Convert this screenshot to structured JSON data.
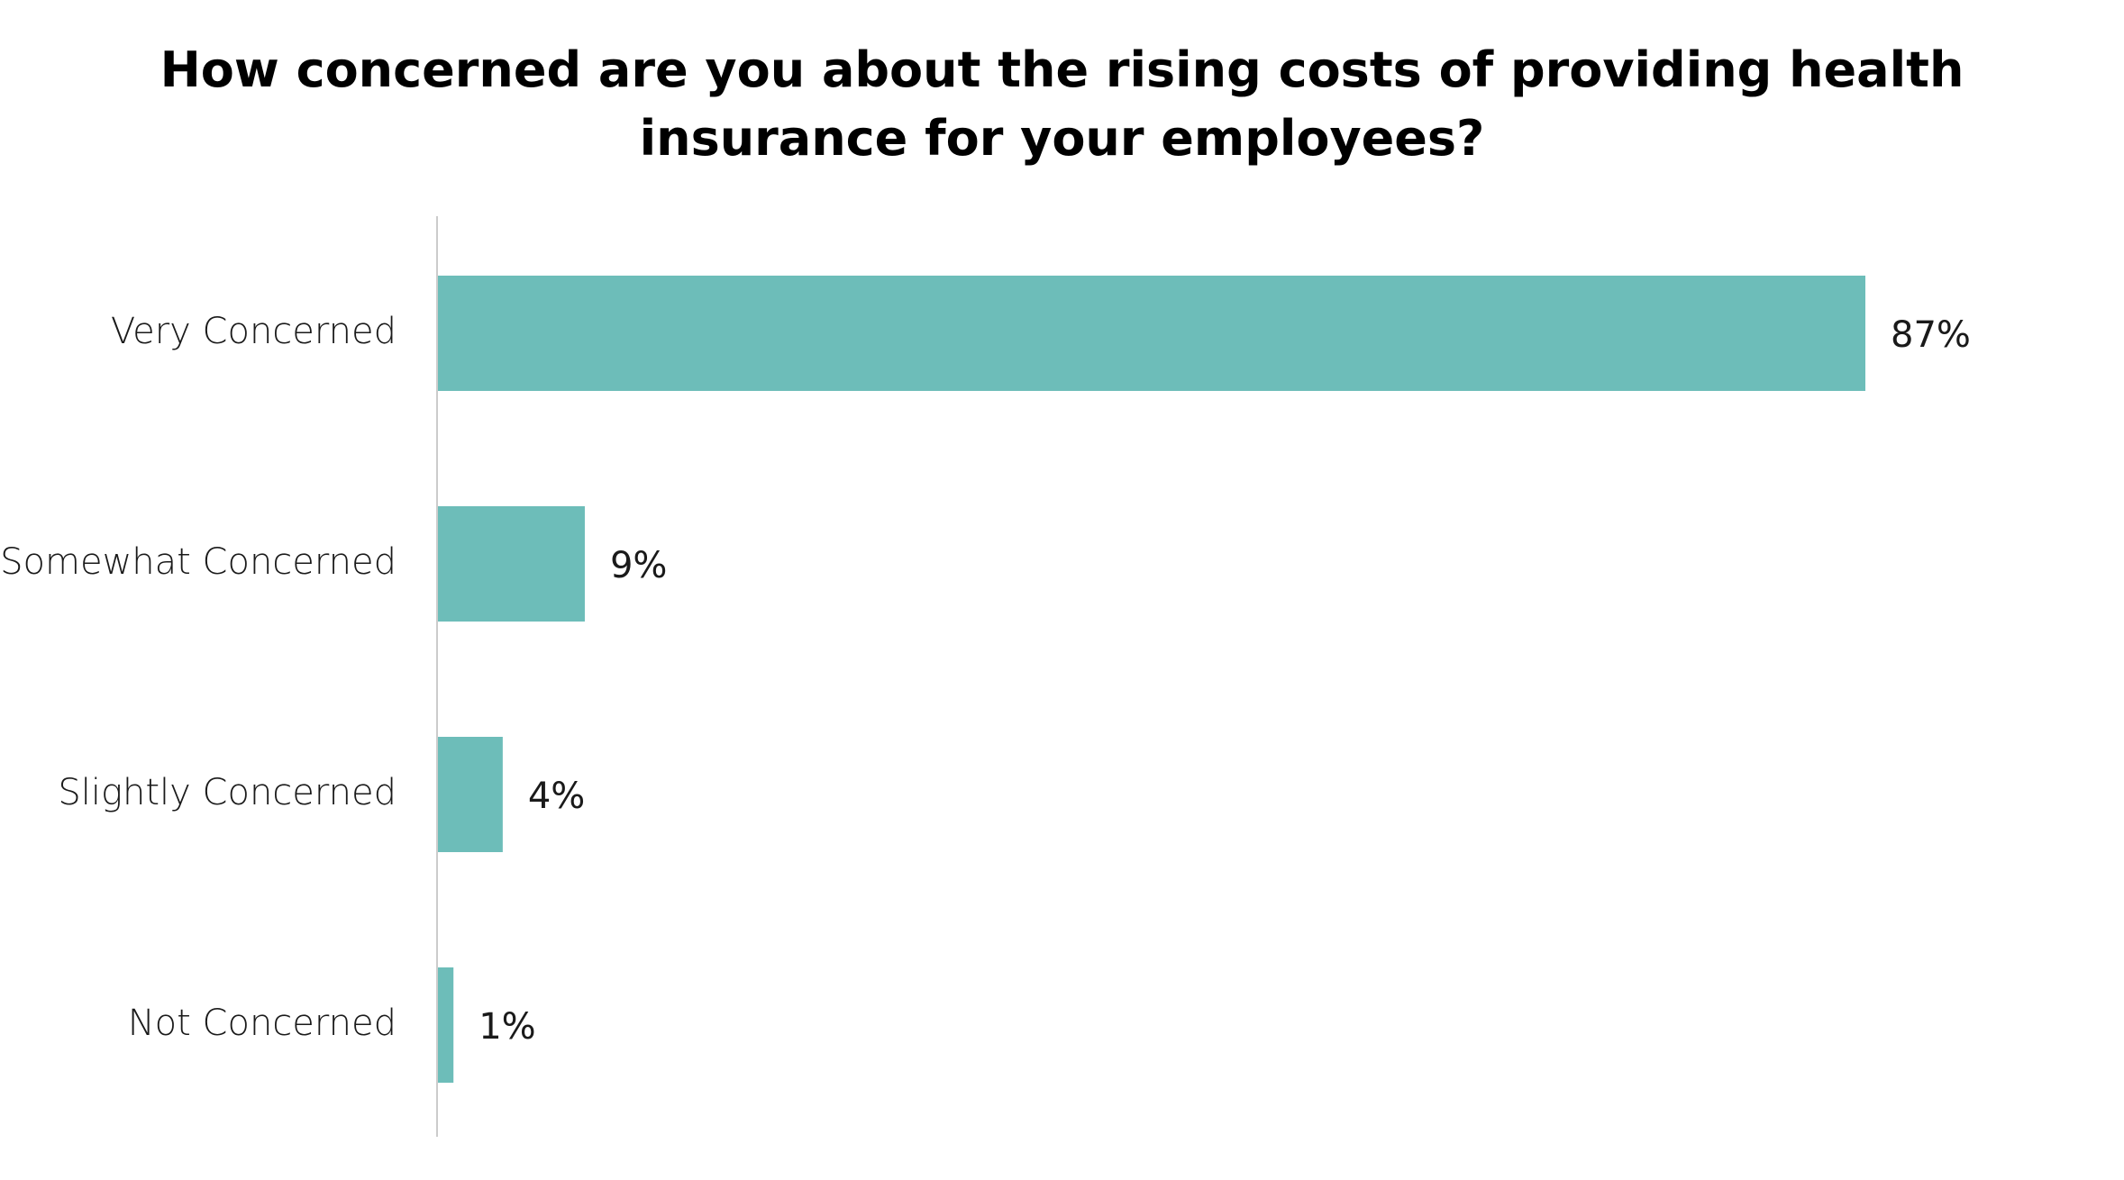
{
  "chart_data": {
    "type": "bar",
    "orientation": "horizontal",
    "title": "How concerned are you about the rising costs of providing health insurance for your employees?",
    "title_lines": [
      "How concerned are you about the rising costs of providing health",
      "insurance for your employees?"
    ],
    "categories": [
      "Very Concerned",
      "Somewhat Concerned",
      "Slightly Concerned",
      "Not Concerned"
    ],
    "values": [
      87,
      9,
      4,
      1
    ],
    "value_labels": [
      "87%",
      "9%",
      "4%",
      "1%"
    ],
    "unit": "%",
    "xlim": [
      0,
      87
    ],
    "grid": false,
    "legend": "none",
    "bar_color": "#6dbdb9",
    "axis_color": "#cccccc"
  }
}
